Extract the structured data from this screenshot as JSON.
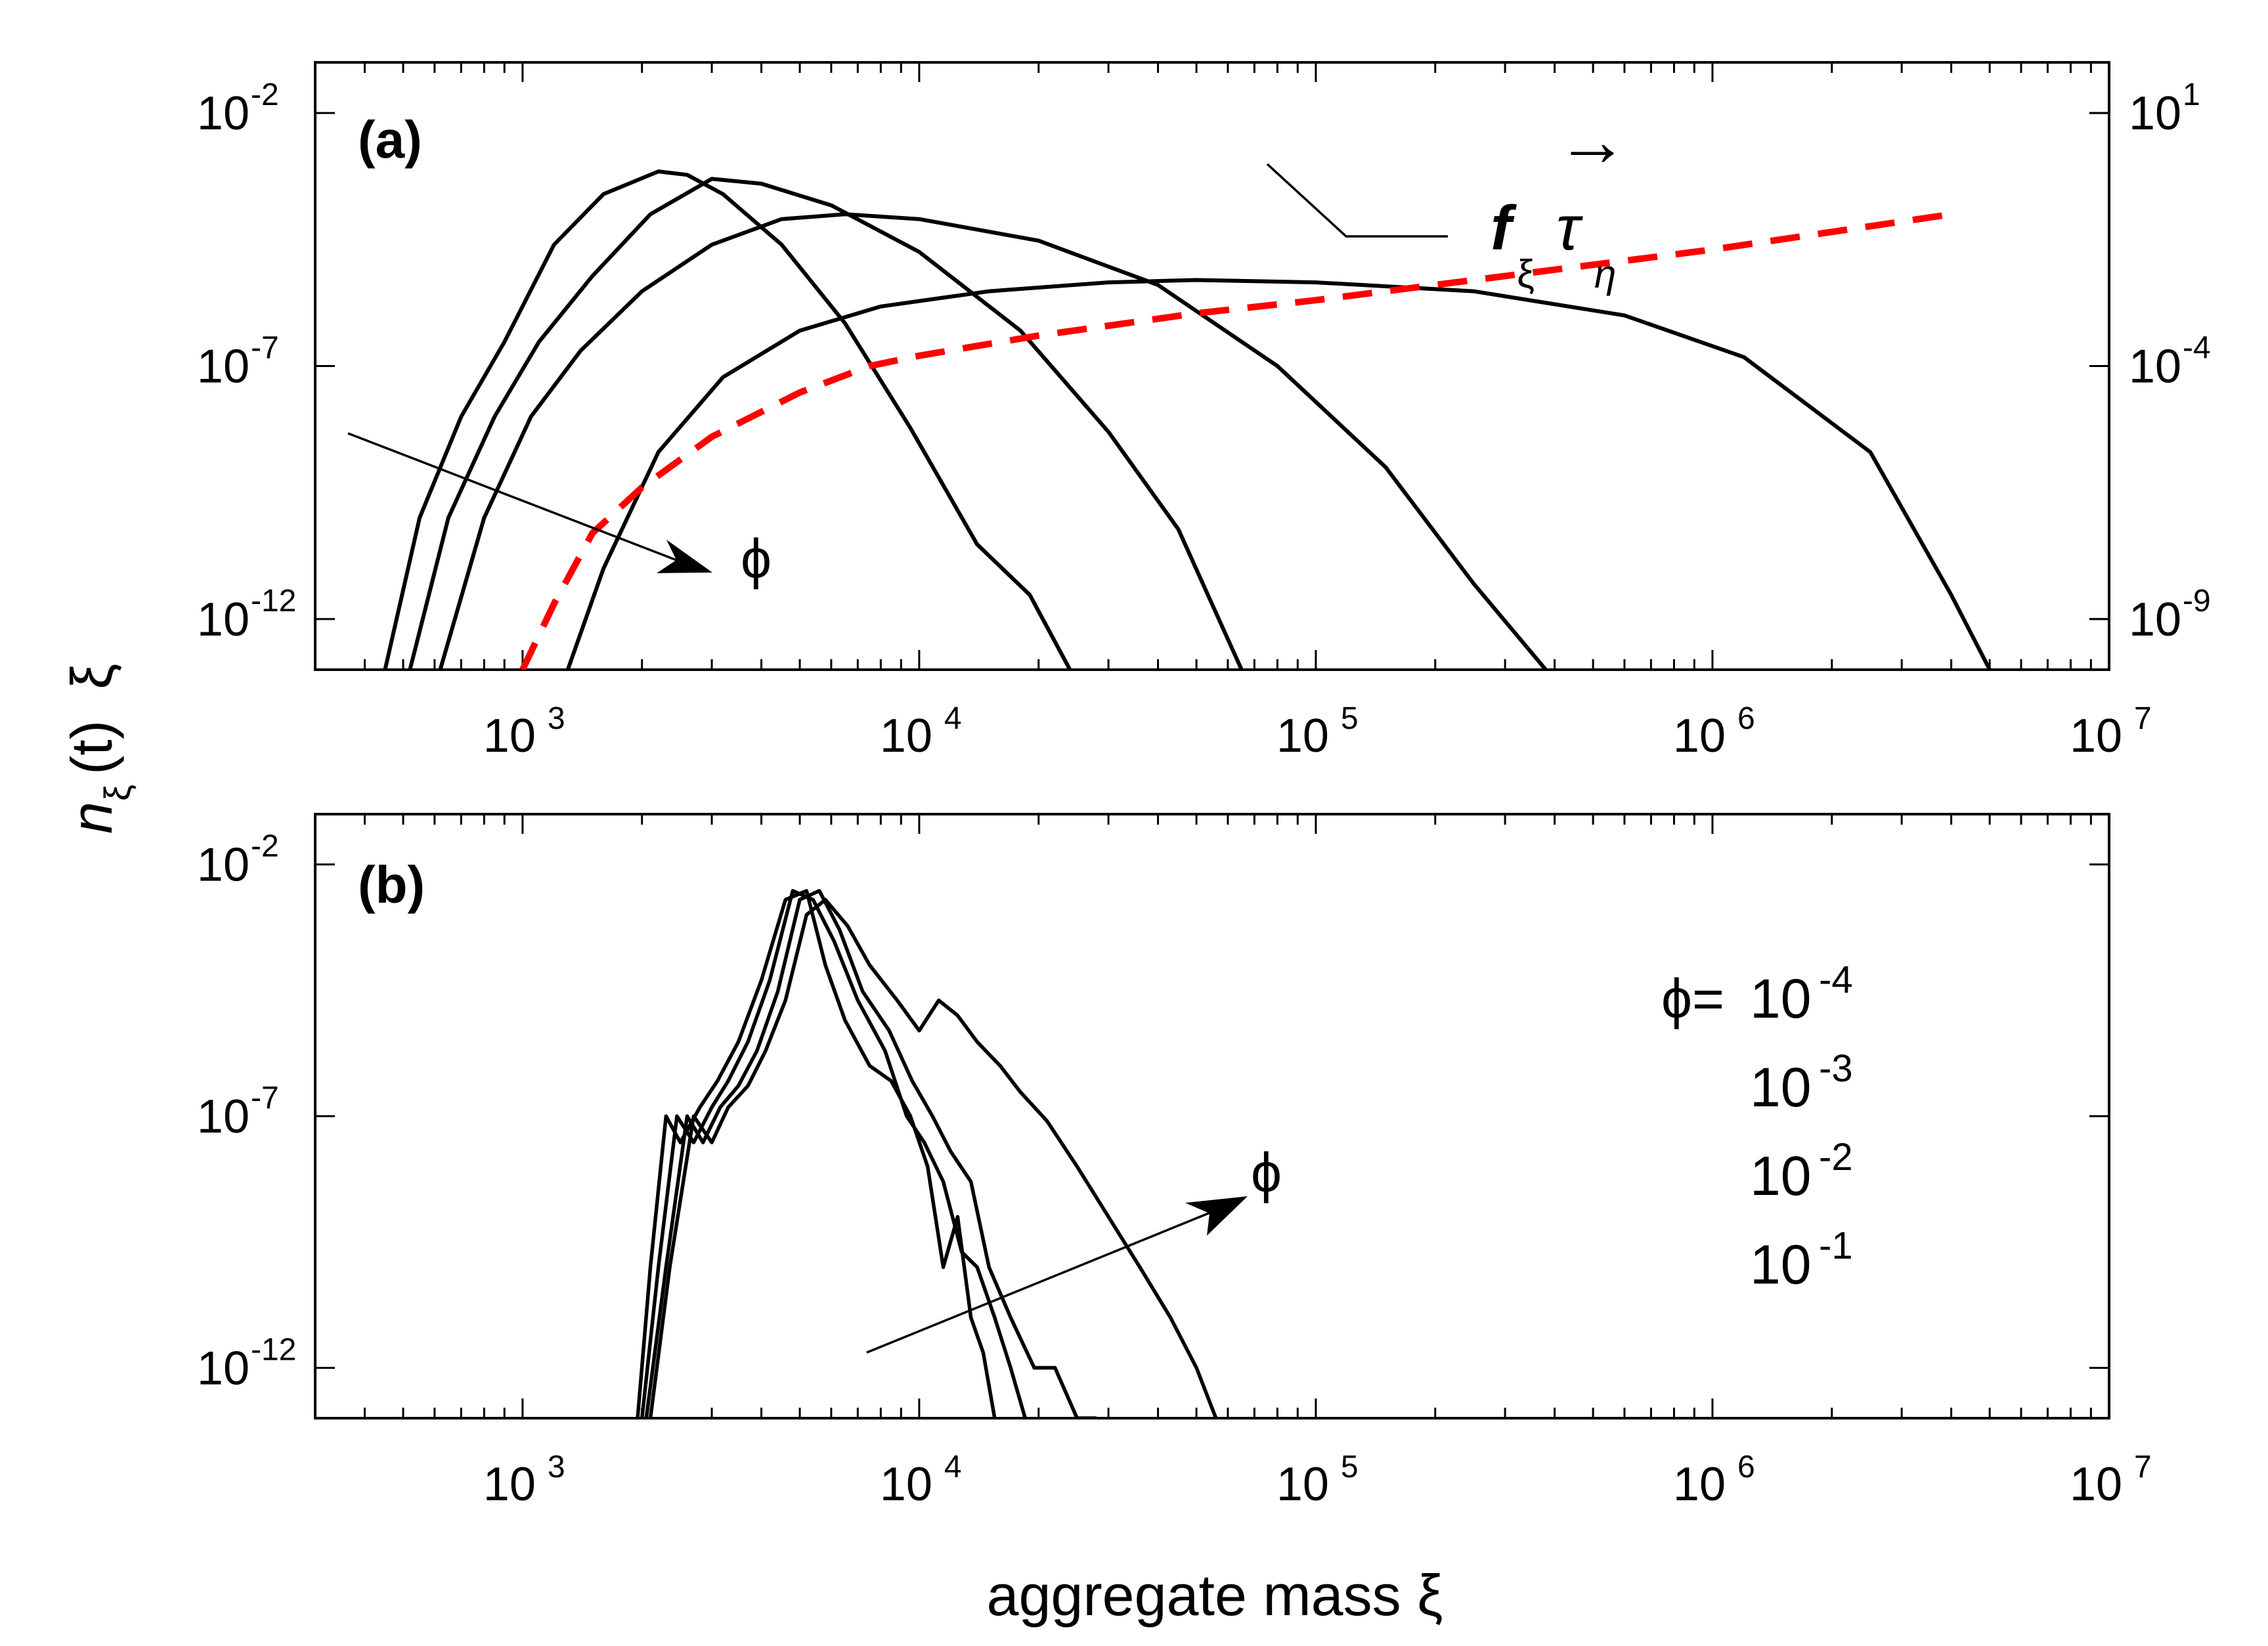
{
  "chart_data": [
    {
      "panel": "(a)",
      "type": "line",
      "xscale": "log",
      "yscale": "log",
      "xlim": [
        300,
        10000000
      ],
      "ylim": [
        1e-13,
        0.1
      ],
      "xticks": [
        {
          "v": 1000.0,
          "base": "10",
          "exp": "3"
        },
        {
          "v": 10000.0,
          "base": "10",
          "exp": "4"
        },
        {
          "v": 100000.0,
          "base": "10",
          "exp": "5"
        },
        {
          "v": 1000000.0,
          "base": "10",
          "exp": "6"
        },
        {
          "v": 10000000.0,
          "base": "10",
          "exp": "7"
        }
      ],
      "yticks": [
        {
          "v": 0.01,
          "base": "10",
          "exp": "-2"
        },
        {
          "v": 1e-07,
          "base": "10",
          "exp": "-7"
        },
        {
          "v": 1e-12,
          "base": "10",
          "exp": "-12"
        }
      ],
      "y2scale": "log",
      "y2lim": [
        1e-10,
        100.0
      ],
      "y2ticks": [
        {
          "v": 10.0,
          "base": "10",
          "exp": "1"
        },
        {
          "v": 0.0001,
          "base": "10",
          "exp": "-4"
        },
        {
          "v": 1e-09,
          "base": "10",
          "exp": "-9"
        }
      ],
      "series": [
        {
          "name": "phi=1e-4",
          "x": [
            450,
            550,
            700,
            900,
            1200,
            1600,
            2200,
            2600,
            3200,
            4500,
            6500,
            9500,
            14000,
            19000,
            24000
          ],
          "y": [
            1e-13,
            1e-10,
            1e-08,
            3e-07,
            2.5e-05,
            0.00025,
            0.0007,
            0.0006,
            0.00025,
            2.5e-05,
            7e-07,
            6e-09,
            3e-11,
            3e-12,
            1e-13
          ]
        },
        {
          "name": "phi=1e-3",
          "x": [
            520,
            650,
            850,
            1100,
            1500,
            2100,
            3000,
            4000,
            6000,
            10000,
            18000,
            30000,
            45000,
            65000
          ],
          "y": [
            1e-13,
            1e-10,
            1e-08,
            3e-07,
            6e-06,
            0.0001,
            0.0005,
            0.0004,
            0.00015,
            1.8e-05,
            5e-07,
            5e-09,
            6e-11,
            1e-13
          ]
        },
        {
          "name": "phi=1e-2",
          "x": [
            620,
            800,
            1050,
            1400,
            2000,
            3000,
            4500,
            6500,
            10000,
            20000,
            40000,
            80000,
            150000,
            250000,
            380000
          ],
          "y": [
            1e-13,
            1e-10,
            1e-08,
            2e-07,
            3e-06,
            2.5e-05,
            8e-05,
            0.0001,
            8e-05,
            3e-05,
            4e-06,
            1e-07,
            1e-09,
            5e-12,
            1e-13
          ]
        },
        {
          "name": "phi=1e-1",
          "x": [
            1300,
            1600,
            2200,
            3200,
            5000,
            8000,
            15000,
            30000,
            50000,
            100000,
            250000,
            600000,
            1200000,
            2500000,
            4000000,
            5000000
          ],
          "y": [
            1e-13,
            1e-11,
            2e-09,
            6e-08,
            5e-07,
            1.5e-06,
            3e-06,
            4.5e-06,
            5e-06,
            4.5e-06,
            3e-06,
            1e-06,
            1.5e-07,
            2e-09,
            3e-12,
            1e-13
          ]
        },
        {
          "name": "f_xi tau_eta",
          "axis": "right",
          "style": "dashed-red",
          "x": [
            1000,
            1200,
            1500,
            2000,
            3000,
            5000,
            7500,
            10000,
            20000,
            50000,
            100000,
            300000,
            1000000,
            4000000
          ],
          "y": [
            1e-10,
            2e-09,
            5e-08,
            4e-07,
            4e-06,
            3e-05,
            0.0001,
            0.00016,
            0.0004,
            0.0011,
            0.002,
            0.006,
            0.02,
            0.1
          ]
        }
      ],
      "annotations": {
        "phi_arrow": "ϕ",
        "right_arrow": "→",
        "f_label": "f",
        "f_sub": "ξ",
        "tau_label": "τ",
        "tau_sub": "η"
      }
    },
    {
      "panel": "(b)",
      "type": "line",
      "xscale": "log",
      "yscale": "log",
      "xlim": [
        300,
        10000000
      ],
      "ylim": [
        1e-13,
        0.1
      ],
      "xticks": [
        {
          "v": 1000.0,
          "base": "10",
          "exp": "3"
        },
        {
          "v": 10000.0,
          "base": "10",
          "exp": "4"
        },
        {
          "v": 100000.0,
          "base": "10",
          "exp": "5"
        },
        {
          "v": 1000000.0,
          "base": "10",
          "exp": "6"
        },
        {
          "v": 10000000.0,
          "base": "10",
          "exp": "7"
        }
      ],
      "yticks": [
        {
          "v": 0.01,
          "base": "10",
          "exp": "-2"
        },
        {
          "v": 1e-07,
          "base": "10",
          "exp": "-7"
        },
        {
          "v": 1e-12,
          "base": "10",
          "exp": "-12"
        }
      ],
      "series": [
        {
          "name": "phi=1e-4",
          "x": [
            1950,
            2100,
            2300,
            2500,
            2800,
            3100,
            3500,
            4000,
            4600,
            5200,
            5800,
            6500,
            7500,
            8500,
            9500,
            10500,
            11500,
            12500,
            13500,
            14500,
            15500
          ],
          "y": [
            1e-13,
            1e-10,
            1e-07,
            3e-08,
            1.5e-07,
            5e-07,
            3e-06,
            5e-05,
            0.002,
            0.003,
            0.0001,
            8e-06,
            1e-06,
            5e-07,
            1e-07,
            1e-08,
            1e-10,
            1e-09,
            1e-11,
            2e-12,
            1e-13
          ]
        },
        {
          "name": "phi=1e-3",
          "x": [
            2000,
            2200,
            2450,
            2700,
            3000,
            3300,
            3700,
            4200,
            4800,
            5400,
            6100,
            7000,
            8200,
            9300,
            10300,
            11500,
            12800,
            14000,
            15500,
            17000,
            18500
          ],
          "y": [
            1e-13,
            1e-10,
            1e-07,
            3e-08,
            1.5e-07,
            5e-07,
            3e-06,
            5e-05,
            0.003,
            0.002,
            0.0003,
            2e-05,
            2e-06,
            1e-07,
            3e-08,
            5e-09,
            2e-10,
            1e-10,
            1e-11,
            1e-12,
            1e-13
          ]
        },
        {
          "name": "phi=1e-2",
          "x": [
            2050,
            2300,
            2600,
            2850,
            3150,
            3500,
            3900,
            4400,
            5000,
            5600,
            6300,
            7200,
            8400,
            9600,
            10800,
            12000,
            13500,
            15000,
            17000,
            19500,
            22000,
            25000,
            28000
          ],
          "y": [
            1e-13,
            1e-10,
            1e-07,
            3e-08,
            1.5e-07,
            4e-07,
            2e-06,
            3e-05,
            0.002,
            0.003,
            0.0005,
            3e-05,
            5e-06,
            5e-07,
            1e-07,
            2e-08,
            5e-09,
            1e-10,
            1e-11,
            1e-12,
            1e-12,
            1e-13,
            1e-13
          ]
        },
        {
          "name": "phi=1e-1",
          "x": [
            2100,
            2350,
            2700,
            3000,
            3300,
            3700,
            4100,
            4600,
            5200,
            5800,
            6600,
            7500,
            8800,
            10000,
            11200,
            12500,
            14000,
            16000,
            18000,
            21000,
            25000,
            30000,
            36000,
            43000,
            50000,
            56000
          ],
          "y": [
            1e-13,
            1e-10,
            1e-07,
            3e-08,
            1.5e-07,
            4e-07,
            2e-06,
            2e-05,
            0.001,
            0.002,
            0.0006,
            0.0001,
            2e-05,
            5e-06,
            2e-05,
            1e-05,
            3e-06,
            1e-06,
            3e-07,
            8e-08,
            1e-08,
            1e-09,
            1e-10,
            1e-11,
            1e-12,
            1e-13
          ]
        }
      ],
      "annotations": {
        "phi_arrow": "ϕ"
      },
      "legend": {
        "prefix": "ϕ=",
        "entries": [
          {
            "base": "10",
            "exp": "-4"
          },
          {
            "base": "10",
            "exp": "-3"
          },
          {
            "base": "10",
            "exp": "-2"
          },
          {
            "base": "10",
            "exp": "-1"
          }
        ]
      }
    }
  ],
  "labels": {
    "panel_a": "(a)",
    "panel_b": "(b)",
    "xlabel": "aggregate mass ξ",
    "ylabel": {
      "n": "n",
      "n_sub": "ξ",
      "mid": "(t)",
      "mid2": "ξ"
    }
  }
}
